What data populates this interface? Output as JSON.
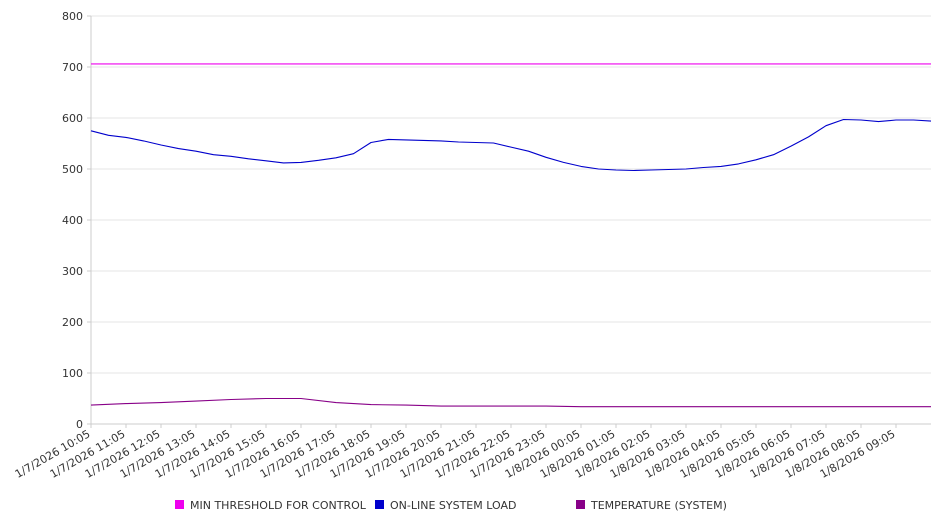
{
  "chart_data": {
    "type": "line",
    "title": "",
    "xlabel": "",
    "ylabel": "",
    "ylim": [
      0,
      800
    ],
    "yticks": [
      0,
      100,
      200,
      300,
      400,
      500,
      600,
      700,
      800
    ],
    "grid": "horizontal",
    "legend": "bottom",
    "categories": [
      "1/7/2026 10:05",
      "1/7/2026 11:05",
      "1/7/2026 12:05",
      "1/7/2026 13:05",
      "1/7/2026 14:05",
      "1/7/2026 15:05",
      "1/7/2026 16:05",
      "1/7/2026 17:05",
      "1/7/2026 18:05",
      "1/7/2026 19:05",
      "1/7/2026 20:05",
      "1/7/2026 21:05",
      "1/7/2026 22:05",
      "1/7/2026 23:05",
      "1/8/2026 00:05",
      "1/8/2026 01:05",
      "1/8/2026 02:05",
      "1/8/2026 03:05",
      "1/8/2026 04:05",
      "1/8/2026 05:05",
      "1/8/2026 06:05",
      "1/8/2026 07:05",
      "1/8/2026 08:05",
      "1/8/2026 09:05"
    ],
    "x_end": "1/8/2026 10:05",
    "series": [
      {
        "name": "MIN THRESHOLD FOR CONTROL",
        "color": "#ee00ee",
        "x": [
          "1/7/2026 10:05",
          "1/8/2026 10:05"
        ],
        "y": [
          706,
          706
        ]
      },
      {
        "name": "ON-LINE SYSTEM LOAD",
        "color": "#0000cc",
        "x": [
          "1/7/2026 10:05",
          "1/7/2026 10:35",
          "1/7/2026 11:05",
          "1/7/2026 11:35",
          "1/7/2026 12:05",
          "1/7/2026 12:35",
          "1/7/2026 13:05",
          "1/7/2026 13:35",
          "1/7/2026 14:05",
          "1/7/2026 14:35",
          "1/7/2026 15:05",
          "1/7/2026 15:35",
          "1/7/2026 16:05",
          "1/7/2026 16:35",
          "1/7/2026 17:05",
          "1/7/2026 17:35",
          "1/7/2026 18:05",
          "1/7/2026 18:35",
          "1/7/2026 19:05",
          "1/7/2026 19:35",
          "1/7/2026 20:05",
          "1/7/2026 20:35",
          "1/7/2026 21:05",
          "1/7/2026 21:35",
          "1/7/2026 22:05",
          "1/7/2026 22:35",
          "1/7/2026 23:05",
          "1/7/2026 23:35",
          "1/8/2026 00:05",
          "1/8/2026 00:35",
          "1/8/2026 01:05",
          "1/8/2026 01:35",
          "1/8/2026 02:05",
          "1/8/2026 02:35",
          "1/8/2026 03:05",
          "1/8/2026 03:35",
          "1/8/2026 04:05",
          "1/8/2026 04:35",
          "1/8/2026 05:05",
          "1/8/2026 05:35",
          "1/8/2026 06:05",
          "1/8/2026 06:35",
          "1/8/2026 07:05",
          "1/8/2026 07:35",
          "1/8/2026 08:05",
          "1/8/2026 08:35",
          "1/8/2026 09:05",
          "1/8/2026 09:35",
          "1/8/2026 10:05"
        ],
        "y": [
          575,
          566,
          562,
          555,
          547,
          540,
          535,
          528,
          525,
          520,
          516,
          512,
          513,
          517,
          522,
          530,
          552,
          558,
          557,
          556,
          555,
          553,
          552,
          551,
          543,
          535,
          523,
          513,
          505,
          500,
          498,
          497,
          498,
          499,
          500,
          503,
          505,
          510,
          518,
          528,
          545,
          563,
          585,
          597,
          596,
          593,
          596,
          596,
          594
        ]
      },
      {
        "name": "TEMPERATURE (SYSTEM)",
        "color": "#880088",
        "x": [
          "1/7/2026 10:05",
          "1/7/2026 11:05",
          "1/7/2026 12:05",
          "1/7/2026 13:05",
          "1/7/2026 14:05",
          "1/7/2026 15:05",
          "1/7/2026 16:05",
          "1/7/2026 17:05",
          "1/7/2026 18:05",
          "1/7/2026 19:05",
          "1/7/2026 20:05",
          "1/7/2026 21:05",
          "1/7/2026 22:05",
          "1/7/2026 23:05",
          "1/8/2026 00:05",
          "1/8/2026 01:05",
          "1/8/2026 02:05",
          "1/8/2026 03:05",
          "1/8/2026 04:05",
          "1/8/2026 05:05",
          "1/8/2026 06:05",
          "1/8/2026 07:05",
          "1/8/2026 08:05",
          "1/8/2026 09:05",
          "1/8/2026 10:05"
        ],
        "y": [
          37,
          40,
          42,
          45,
          48,
          50,
          50,
          42,
          38,
          37,
          35,
          35,
          35,
          35,
          34,
          34,
          34,
          34,
          34,
          34,
          34,
          34,
          34,
          34,
          34
        ]
      }
    ]
  }
}
